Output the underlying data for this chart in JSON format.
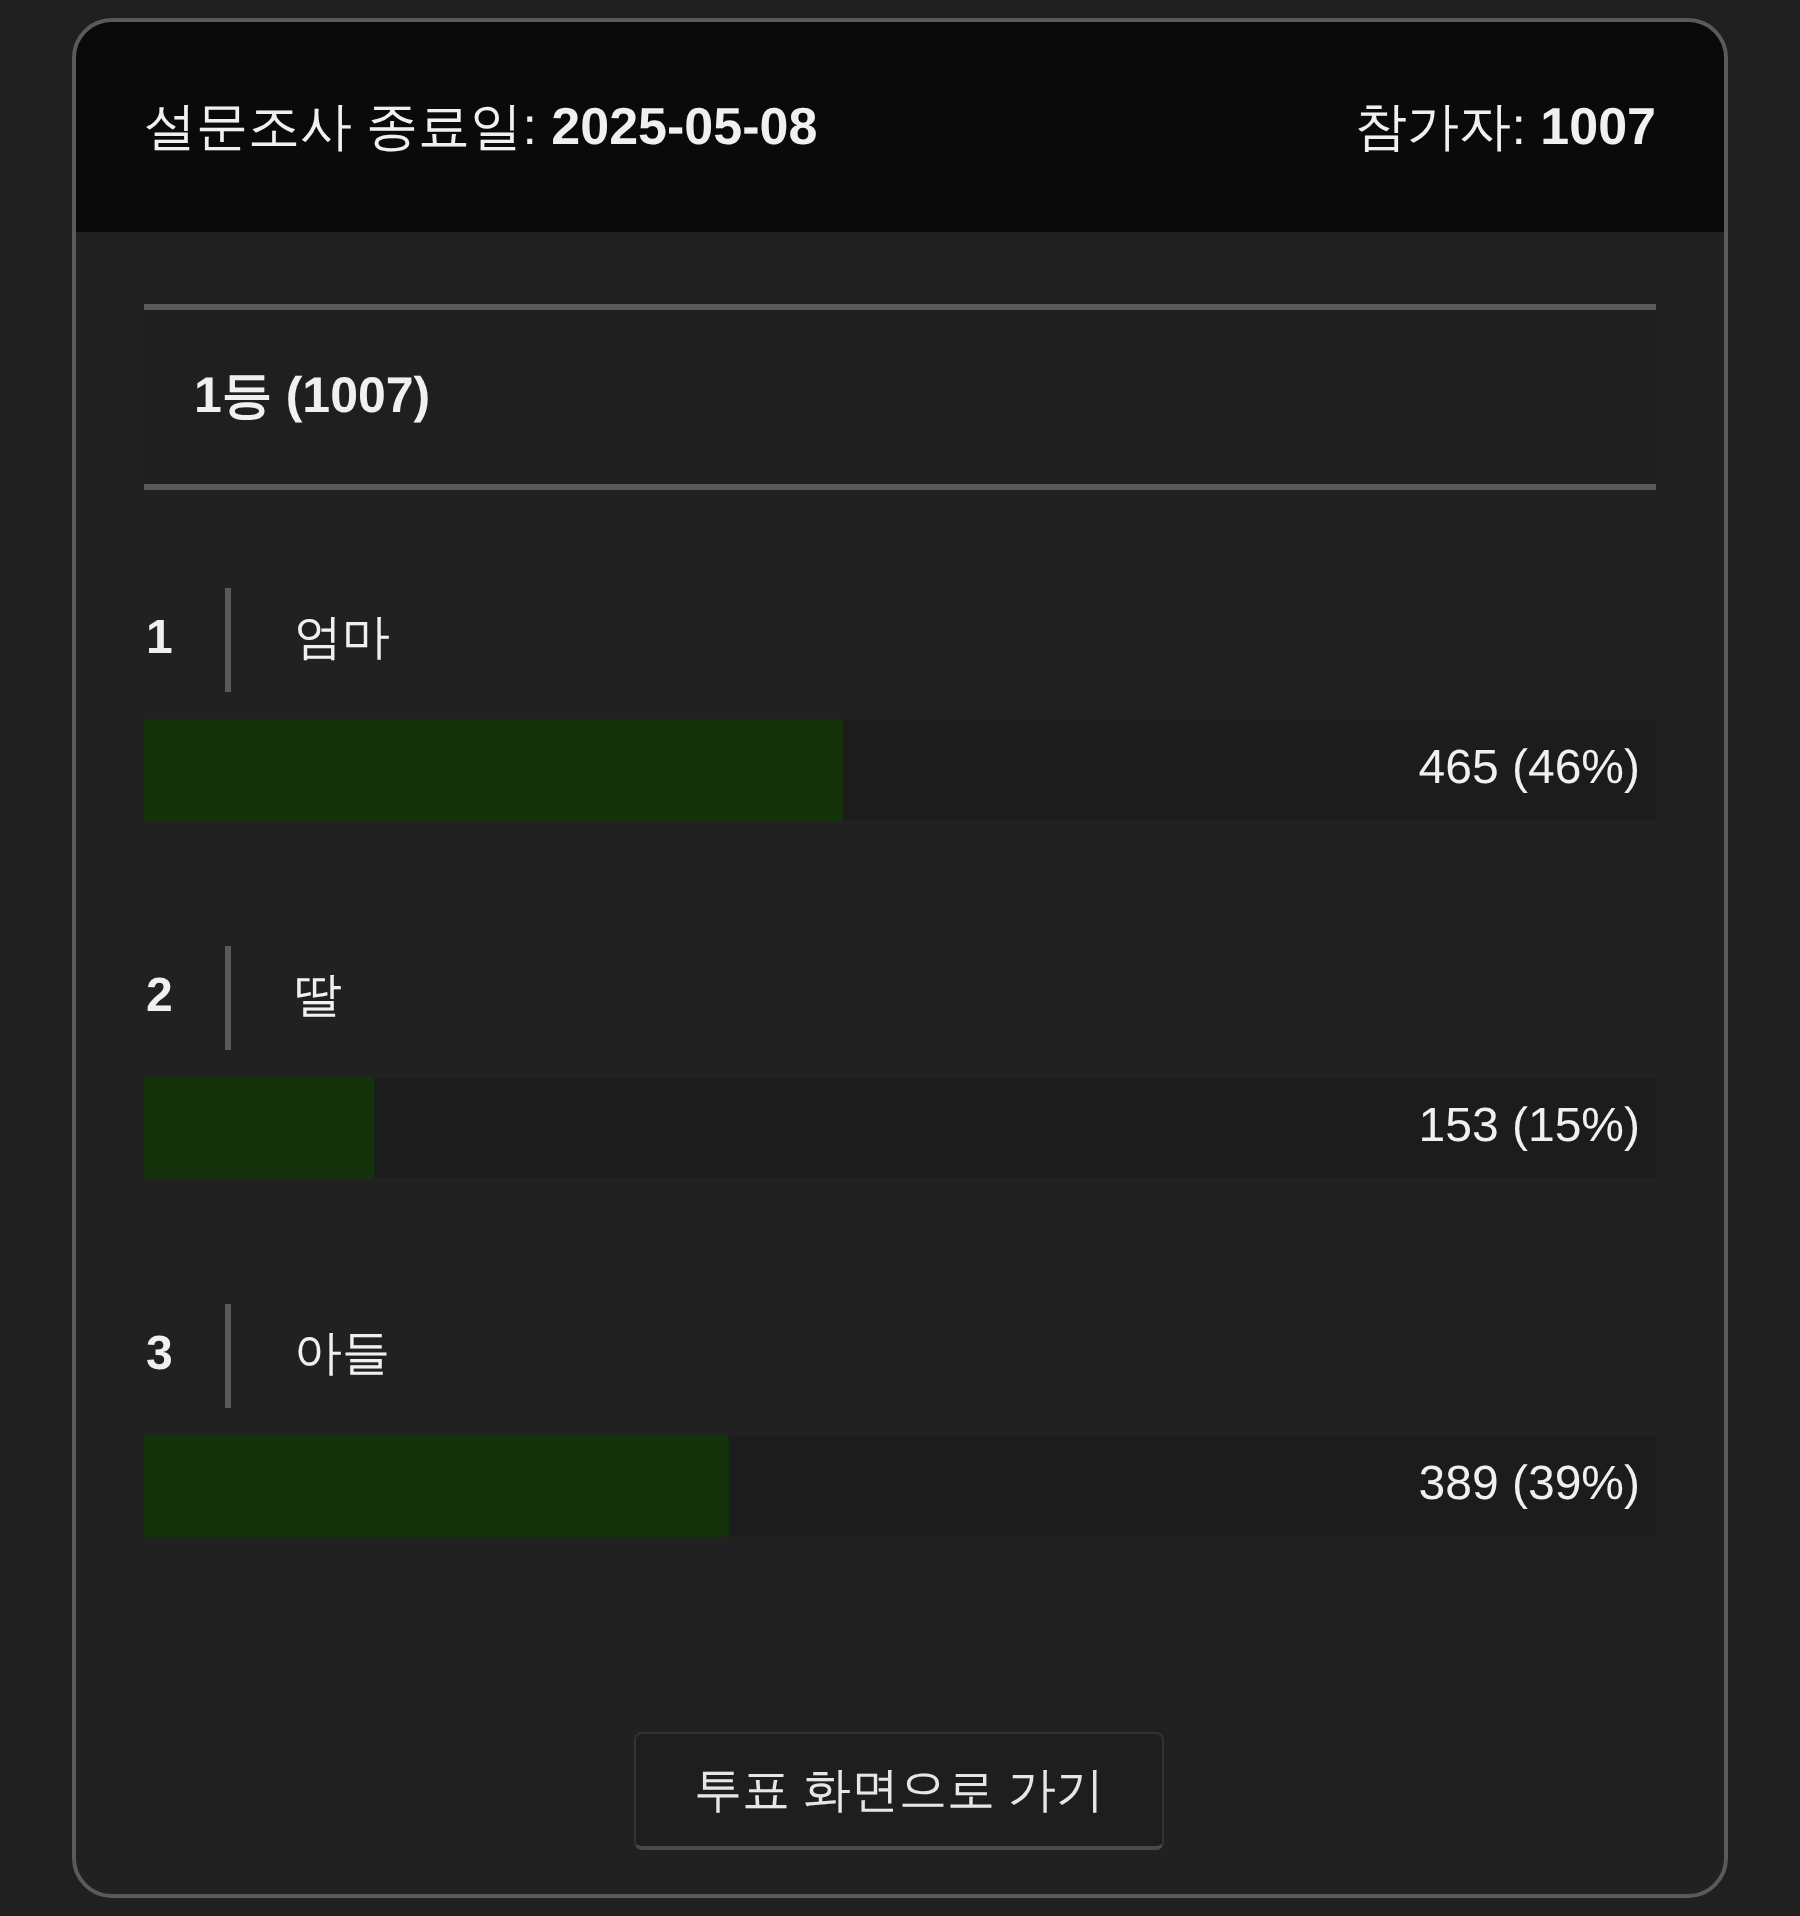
{
  "chart_data": {
    "type": "bar",
    "orientation": "horizontal",
    "title": "설문조사 종료일: 2025-05-08",
    "subtitle": "1등 (1007)",
    "categories": [
      "엄마",
      "딸",
      "아들"
    ],
    "values": [
      465,
      153,
      389
    ],
    "color": "#15330a",
    "tick_labels": "y",
    "value_labels": [
      "465 (46%)",
      "153 (15%)",
      "389 (39%)"
    ],
    "annotations": [
      "참가자: 1007",
      "1",
      "2",
      "3",
      "투표 화면으로 가기"
    ]
  }
}
